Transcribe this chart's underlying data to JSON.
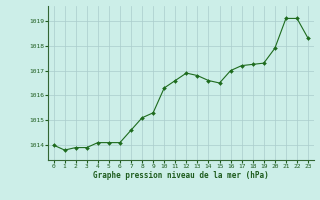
{
  "x": [
    0,
    1,
    2,
    3,
    4,
    5,
    6,
    7,
    8,
    9,
    10,
    11,
    12,
    13,
    14,
    15,
    16,
    17,
    18,
    19,
    20,
    21,
    22,
    23
  ],
  "y": [
    1014.0,
    1013.8,
    1013.9,
    1013.9,
    1014.1,
    1014.1,
    1014.1,
    1014.6,
    1015.1,
    1015.3,
    1016.3,
    1016.6,
    1016.9,
    1016.8,
    1016.6,
    1016.5,
    1017.0,
    1017.2,
    1017.25,
    1017.3,
    1017.9,
    1019.1,
    1019.1,
    1018.3
  ],
  "line_color": "#1e6b1e",
  "marker_color": "#1e6b1e",
  "background_color": "#cceee8",
  "grid_color": "#aacccc",
  "xlabel": "Graphe pression niveau de la mer (hPa)",
  "xlabel_color": "#1e5c1e",
  "tick_color": "#1e5c1e",
  "ylim": [
    1013.4,
    1019.6
  ],
  "yticks": [
    1014,
    1015,
    1016,
    1017,
    1018,
    1019
  ],
  "xlim": [
    -0.5,
    23.5
  ],
  "xticks": [
    0,
    1,
    2,
    3,
    4,
    5,
    6,
    7,
    8,
    9,
    10,
    11,
    12,
    13,
    14,
    15,
    16,
    17,
    18,
    19,
    20,
    21,
    22,
    23
  ],
  "border_color": "#336633"
}
